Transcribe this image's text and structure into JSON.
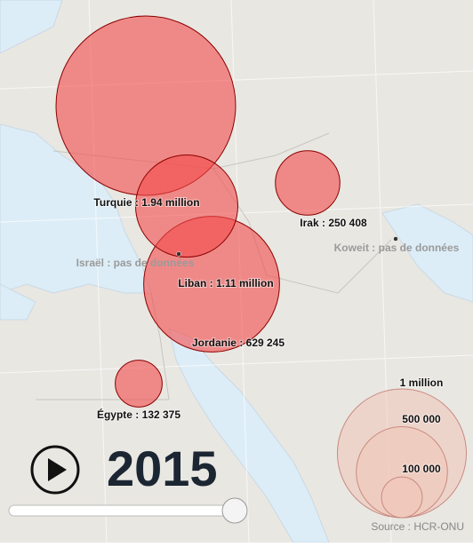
{
  "chart_data": {
    "type": "bubble-map",
    "points": [
      {
        "label": "Turquie : 1.94 million",
        "value": 1940000
      },
      {
        "label": "Liban : 1.11 million",
        "value": 1110000
      },
      {
        "label": "Jordanie : 629 245",
        "value": 629245
      },
      {
        "label": "Irak : 250 408",
        "value": 250408
      },
      {
        "label": "Égypte : 132 375",
        "value": 132375
      }
    ],
    "no_data": [
      "Israël : pas de données",
      "Koweit : pas de données"
    ],
    "legend_sizes": [
      {
        "value": 1000000,
        "label": "1 million"
      },
      {
        "value": 500000,
        "label": "500 000"
      },
      {
        "value": 100000,
        "label": "100 000"
      }
    ],
    "color": "#f44b4b",
    "year": "2015",
    "source": "Source : HCR-ONU"
  }
}
